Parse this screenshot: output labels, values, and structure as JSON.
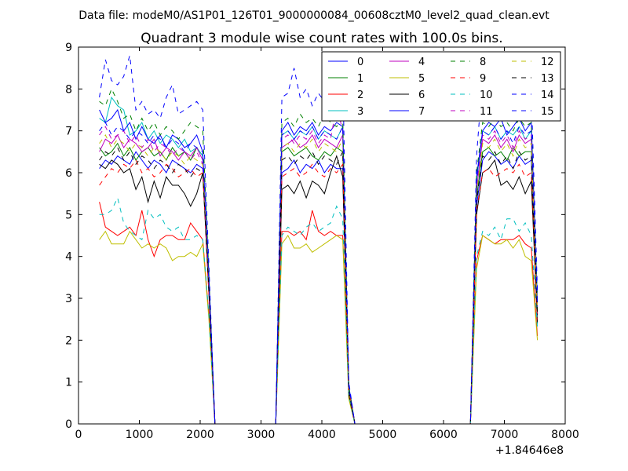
{
  "figure": {
    "suptitle": "Data file: modeM0/AS1P01_126T01_9000000084_00608cztM0_level2_quad_clean.evt",
    "title": "Quadrant 3 module wise count rates with 100.0s bins.",
    "x_offset_label": "+1.84646e8"
  },
  "chart_data": {
    "type": "line",
    "title": "Quadrant 3 module wise count rates with 100.0s bins.",
    "xlabel": "",
    "ylabel": "",
    "xlim": [
      0,
      8000
    ],
    "ylim": [
      0,
      9
    ],
    "x_ticks": [
      0,
      1000,
      2000,
      3000,
      4000,
      5000,
      6000,
      7000,
      8000
    ],
    "y_ticks": [
      0,
      1,
      2,
      3,
      4,
      5,
      6,
      7,
      8,
      9
    ],
    "x_offset": 184646000,
    "grid": false,
    "legend_position": "top-right",
    "legend_columns": 4,
    "x": [
      343,
      443,
      543,
      643,
      743,
      843,
      943,
      1043,
      1143,
      1243,
      1343,
      1443,
      1543,
      1643,
      1743,
      1843,
      1943,
      2043,
      2143,
      2243,
      3243,
      3343,
      3443,
      3543,
      3643,
      3743,
      3843,
      3943,
      4043,
      4143,
      4243,
      4343,
      4443,
      4543,
      6443,
      6543,
      6643,
      6743,
      6843,
      6943,
      7043,
      7143,
      7243,
      7343,
      7443,
      7543
    ],
    "series": [
      {
        "name": "0",
        "color": "#0000ff",
        "dash": "solid",
        "values": [
          6.1,
          6.3,
          6.2,
          6.4,
          6.3,
          6.2,
          6.5,
          6.3,
          6.1,
          6.3,
          6.2,
          6.0,
          6.3,
          6.2,
          6.1,
          6.0,
          6.2,
          6.1,
          3.2,
          0,
          0,
          6.0,
          6.1,
          6.3,
          6.0,
          6.2,
          6.1,
          6.3,
          6.0,
          6.2,
          6.1,
          6.1,
          0.8,
          0,
          0,
          5.2,
          6.3,
          6.5,
          6.4,
          6.2,
          6.3,
          6.1,
          6.4,
          6.2,
          6.3,
          2.6
        ]
      },
      {
        "name": "1",
        "color": "#008000",
        "dash": "solid",
        "values": [
          6.6,
          6.4,
          6.5,
          6.7,
          6.4,
          6.6,
          6.3,
          6.5,
          6.6,
          6.4,
          6.5,
          6.3,
          6.6,
          6.4,
          6.5,
          6.3,
          6.6,
          6.4,
          3.3,
          0,
          0,
          6.5,
          6.6,
          6.4,
          6.5,
          6.6,
          6.4,
          6.3,
          6.5,
          6.4,
          6.6,
          6.5,
          0.8,
          0,
          0,
          5.4,
          6.5,
          6.6,
          6.4,
          6.5,
          6.3,
          6.6,
          6.4,
          6.5,
          6.5,
          2.7
        ]
      },
      {
        "name": "2",
        "color": "#ff0000",
        "dash": "solid",
        "values": [
          5.3,
          4.7,
          4.6,
          4.5,
          4.6,
          4.7,
          4.5,
          5.1,
          4.4,
          4.0,
          4.4,
          4.5,
          4.5,
          4.4,
          4.4,
          4.8,
          4.6,
          4.4,
          2.6,
          0,
          0,
          4.6,
          4.6,
          4.5,
          4.6,
          4.4,
          5.1,
          4.6,
          4.5,
          4.6,
          4.5,
          4.5,
          0.7,
          0,
          0,
          3.9,
          4.5,
          4.4,
          4.3,
          4.4,
          4.4,
          4.4,
          4.5,
          4.3,
          4.2,
          2.1
        ]
      },
      {
        "name": "3",
        "color": "#00bfbf",
        "dash": "solid",
        "values": [
          7.3,
          7.2,
          7.8,
          7.6,
          7.5,
          6.9,
          7.0,
          7.2,
          6.8,
          7.0,
          6.7,
          6.9,
          6.8,
          6.6,
          6.8,
          6.5,
          6.6,
          6.4,
          3.5,
          0,
          0,
          6.9,
          7.0,
          6.8,
          7.0,
          6.9,
          7.1,
          6.8,
          7.0,
          6.9,
          6.8,
          7.1,
          0.9,
          0,
          0,
          5.8,
          7.0,
          6.9,
          7.1,
          6.8,
          7.0,
          6.9,
          7.1,
          6.8,
          7.0,
          2.9
        ]
      },
      {
        "name": "4",
        "color": "#bf00bf",
        "dash": "solid",
        "values": [
          6.5,
          6.8,
          6.7,
          6.9,
          6.6,
          6.8,
          6.7,
          6.5,
          6.6,
          6.8,
          6.4,
          6.6,
          6.5,
          6.3,
          6.5,
          6.4,
          6.6,
          6.3,
          3.4,
          0,
          0,
          6.6,
          6.7,
          6.8,
          6.6,
          6.7,
          6.9,
          6.6,
          6.8,
          6.7,
          6.6,
          6.9,
          0.8,
          0,
          0,
          5.6,
          6.8,
          6.7,
          6.9,
          6.6,
          6.8,
          6.5,
          6.9,
          6.7,
          6.8,
          2.8
        ]
      },
      {
        "name": "5",
        "color": "#bfbf00",
        "dash": "solid",
        "values": [
          4.4,
          4.6,
          4.3,
          4.3,
          4.3,
          4.6,
          4.4,
          4.2,
          4.3,
          4.2,
          4.3,
          4.2,
          3.9,
          4.0,
          4.0,
          4.1,
          4.0,
          4.3,
          2.5,
          0,
          0,
          4.3,
          4.5,
          4.2,
          4.2,
          4.3,
          4.1,
          4.2,
          4.3,
          4.4,
          4.5,
          4.4,
          0.6,
          0,
          0,
          3.7,
          4.5,
          4.4,
          4.3,
          4.3,
          4.4,
          4.2,
          4.4,
          4.0,
          3.9,
          2.0
        ]
      },
      {
        "name": "6",
        "color": "#000000",
        "dash": "solid",
        "values": [
          6.2,
          6.1,
          6.3,
          6.2,
          6.0,
          6.1,
          5.6,
          5.9,
          5.3,
          5.8,
          5.4,
          5.9,
          5.7,
          5.7,
          5.5,
          5.2,
          5.5,
          6.0,
          3.1,
          0,
          0,
          5.6,
          5.7,
          5.5,
          5.8,
          5.4,
          5.8,
          5.7,
          5.5,
          6.0,
          6.4,
          5.9,
          0.7,
          0,
          0,
          5.0,
          6.0,
          6.1,
          6.3,
          5.7,
          5.8,
          5.6,
          5.9,
          5.5,
          5.8,
          2.4
        ]
      },
      {
        "name": "7",
        "color": "#0000ff",
        "dash": "solid",
        "values": [
          7.5,
          7.2,
          7.3,
          7.5,
          7.0,
          7.2,
          6.8,
          7.1,
          6.8,
          6.7,
          6.9,
          6.6,
          6.9,
          6.8,
          6.6,
          6.7,
          6.9,
          6.5,
          3.5,
          0,
          0,
          7.0,
          7.2,
          6.9,
          7.1,
          7.0,
          7.2,
          6.9,
          7.1,
          7.0,
          7.2,
          7.1,
          0.9,
          0,
          0,
          5.9,
          7.0,
          7.2,
          7.1,
          7.3,
          6.9,
          7.1,
          7.3,
          7.0,
          7.2,
          2.9
        ]
      },
      {
        "name": "8",
        "color": "#008000",
        "dash": "dashed",
        "values": [
          7.7,
          7.6,
          8.0,
          7.7,
          7.3,
          7.4,
          7.0,
          7.3,
          7.0,
          7.2,
          6.9,
          7.1,
          7.0,
          6.8,
          7.0,
          7.2,
          7.1,
          7.0,
          3.6,
          0,
          0,
          7.2,
          7.3,
          7.1,
          7.4,
          7.2,
          7.3,
          7.1,
          7.4,
          7.2,
          7.1,
          7.3,
          0.9,
          0,
          0,
          6.0,
          7.2,
          7.1,
          7.3,
          7.1,
          7.2,
          7.0,
          7.3,
          7.1,
          7.2,
          3.0
        ]
      },
      {
        "name": "9",
        "color": "#ff0000",
        "dash": "dashed",
        "values": [
          5.7,
          5.9,
          6.1,
          6.0,
          6.2,
          6.1,
          6.3,
          6.0,
          6.1,
          5.9,
          6.0,
          6.2,
          6.1,
          5.9,
          6.0,
          6.1,
          5.9,
          6.0,
          3.1,
          0,
          0,
          5.9,
          6.0,
          6.1,
          5.9,
          6.0,
          6.2,
          6.0,
          5.9,
          6.1,
          6.0,
          6.2,
          0.8,
          0,
          0,
          5.1,
          6.0,
          6.1,
          5.9,
          6.0,
          6.1,
          6.0,
          6.2,
          5.9,
          6.0,
          2.5
        ]
      },
      {
        "name": "10",
        "color": "#00bfbf",
        "dash": "dashed",
        "values": [
          5.0,
          5.0,
          5.1,
          5.4,
          4.8,
          4.6,
          4.5,
          4.4,
          5.1,
          4.9,
          5.0,
          4.7,
          4.6,
          4.7,
          4.4,
          4.4,
          4.5,
          4.4,
          2.6,
          0,
          0,
          4.5,
          4.7,
          4.6,
          4.5,
          4.7,
          4.8,
          4.6,
          4.7,
          4.8,
          5.2,
          4.9,
          0.7,
          0,
          0,
          4.0,
          4.6,
          4.5,
          4.7,
          4.4,
          4.9,
          4.9,
          4.6,
          4.8,
          4.5,
          2.3
        ]
      },
      {
        "name": "11",
        "color": "#bf00bf",
        "dash": "dashed",
        "values": [
          6.9,
          7.1,
          6.8,
          6.9,
          7.0,
          6.7,
          6.9,
          6.6,
          6.8,
          6.5,
          6.7,
          6.6,
          6.4,
          6.6,
          6.5,
          6.3,
          6.5,
          6.2,
          3.4,
          0,
          0,
          6.8,
          6.9,
          6.7,
          6.9,
          6.8,
          7.0,
          6.7,
          6.9,
          6.8,
          7.6,
          7.0,
          0.8,
          0,
          0,
          5.7,
          6.9,
          6.8,
          7.0,
          6.7,
          6.9,
          6.6,
          7.0,
          6.8,
          6.9,
          2.8
        ]
      },
      {
        "name": "12",
        "color": "#bfbf00",
        "dash": "dashed",
        "values": [
          6.7,
          6.9,
          6.6,
          6.8,
          6.7,
          6.5,
          6.7,
          6.6,
          6.4,
          6.6,
          6.5,
          6.3,
          6.5,
          6.4,
          6.2,
          6.4,
          6.3,
          6.2,
          3.3,
          0,
          0,
          6.6,
          6.7,
          6.5,
          6.7,
          6.6,
          6.8,
          6.5,
          6.7,
          6.6,
          6.5,
          6.8,
          0.8,
          0,
          0,
          5.5,
          6.7,
          6.6,
          6.8,
          6.5,
          6.7,
          6.4,
          6.8,
          6.6,
          6.7,
          2.7
        ]
      },
      {
        "name": "13",
        "color": "#000000",
        "dash": "dashed",
        "values": [
          6.3,
          6.5,
          6.4,
          6.6,
          6.3,
          6.5,
          6.2,
          6.4,
          6.3,
          6.1,
          6.3,
          6.2,
          6.0,
          6.2,
          6.1,
          5.9,
          6.1,
          6.0,
          3.2,
          0,
          0,
          6.3,
          6.4,
          6.2,
          6.4,
          6.3,
          6.5,
          6.2,
          6.4,
          6.3,
          6.2,
          6.5,
          0.8,
          0,
          0,
          5.3,
          6.4,
          6.3,
          6.5,
          6.2,
          6.4,
          6.1,
          6.5,
          6.3,
          6.4,
          2.6
        ]
      },
      {
        "name": "14",
        "color": "#0000ff",
        "dash": "dashed",
        "values": [
          7.8,
          8.7,
          8.2,
          8.1,
          8.3,
          8.8,
          7.5,
          7.7,
          7.4,
          7.5,
          7.3,
          7.8,
          8.1,
          7.4,
          7.5,
          7.6,
          7.7,
          7.5,
          3.8,
          0,
          0,
          7.8,
          7.9,
          8.5,
          7.8,
          8.0,
          7.6,
          7.9,
          7.7,
          7.8,
          8.0,
          8.4,
          1.0,
          0,
          0,
          6.4,
          8.3,
          8.2,
          8.0,
          7.8,
          7.9,
          7.7,
          8.0,
          7.8,
          7.9,
          3.2
        ]
      },
      {
        "name": "15",
        "color": "#0000ff",
        "dash": "dashed",
        "values": [
          7.0,
          7.2,
          6.9,
          7.1,
          7.0,
          6.8,
          7.0,
          6.9,
          6.7,
          6.9,
          6.8,
          6.6,
          6.8,
          6.7,
          6.5,
          6.7,
          6.6,
          6.5,
          3.4,
          0,
          0,
          6.9,
          7.0,
          6.8,
          7.0,
          6.9,
          7.1,
          6.8,
          7.0,
          6.9,
          6.8,
          7.1,
          0.9,
          0,
          0,
          5.8,
          7.0,
          6.9,
          7.1,
          6.8,
          7.0,
          6.7,
          7.1,
          6.9,
          7.0,
          2.8
        ]
      }
    ]
  }
}
